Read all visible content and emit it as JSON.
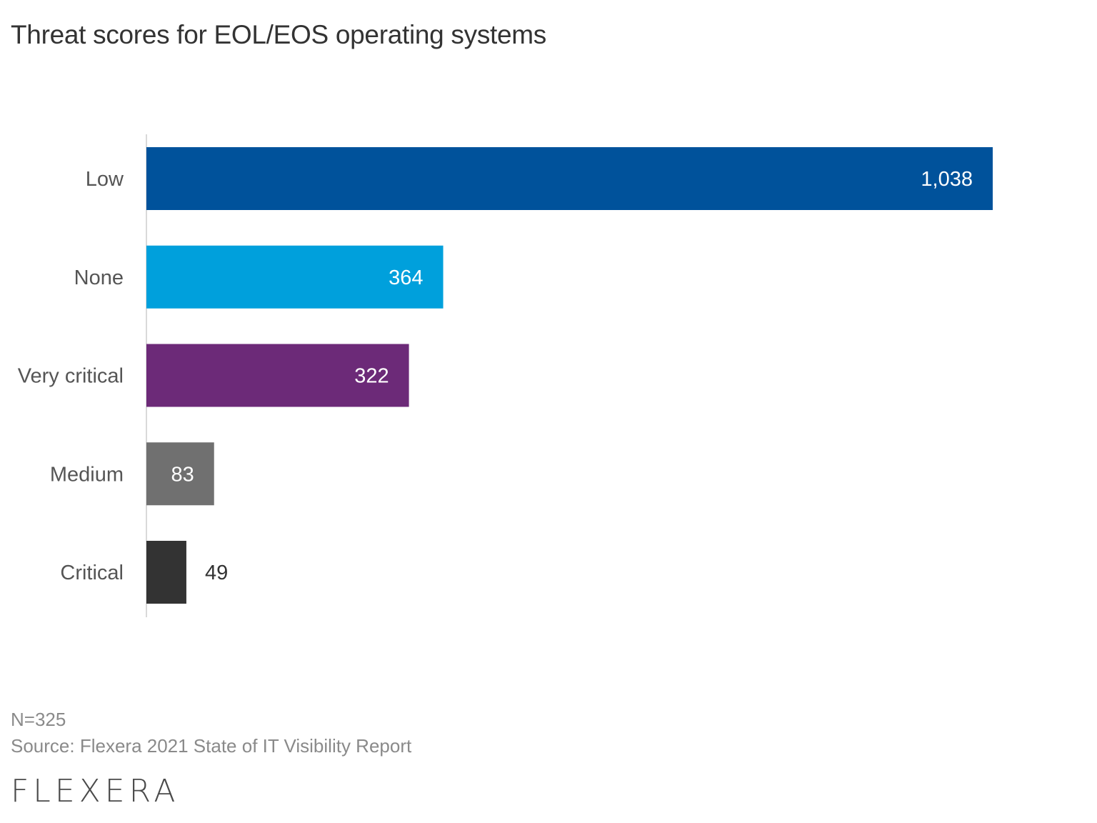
{
  "title": "Threat scores for EOL/EOS operating systems",
  "footer": {
    "n": "N=325",
    "source": "Source: Flexera 2021 State of IT Visibility Report",
    "logo": "FLEXERA"
  },
  "chart_data": {
    "type": "bar",
    "orientation": "horizontal",
    "title": "Threat scores for EOL/EOS operating systems",
    "xlabel": "",
    "ylabel": "",
    "categories": [
      "Low",
      "None",
      "Very critical",
      "Medium",
      "Critical"
    ],
    "values": [
      1038,
      364,
      322,
      83,
      49
    ],
    "value_labels": [
      "1,038",
      "364",
      "322",
      "83",
      "49"
    ],
    "colors": [
      "#00529b",
      "#00a0dc",
      "#6c2a78",
      "#707070",
      "#333333"
    ],
    "xlim": [
      0,
      1038
    ],
    "grid": false,
    "legend": "none"
  }
}
